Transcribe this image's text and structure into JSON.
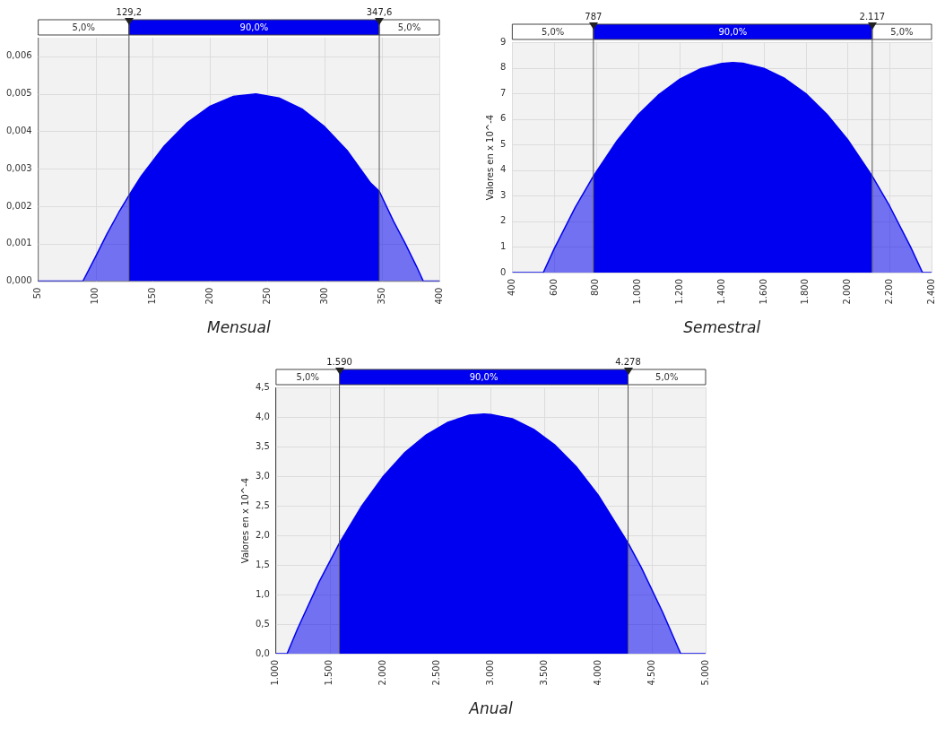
{
  "chart_data": [
    {
      "type": "area",
      "xlabel": "Mensual",
      "color": "#0000f0",
      "x": [
        50,
        89,
        100,
        110,
        120,
        129.2,
        140,
        160,
        180,
        200,
        220,
        240,
        260,
        280,
        300,
        320,
        340,
        347.6,
        360,
        370,
        380,
        386,
        400
      ],
      "values": [
        0,
        0,
        0.00065,
        0.00126,
        0.00182,
        0.00229,
        0.00281,
        0.00361,
        0.00423,
        0.00467,
        0.00493,
        0.005,
        0.00489,
        0.0046,
        0.00412,
        0.00347,
        0.00262,
        0.0024,
        0.0016,
        0.00102,
        0.0004,
        0,
        0
      ],
      "xlim": [
        50,
        400
      ],
      "xticks": [
        50,
        100,
        150,
        200,
        250,
        300,
        350,
        400
      ],
      "ylim": [
        0,
        0.0065
      ],
      "yticks": [
        {
          "value": 0,
          "label": "0,000"
        },
        {
          "value": 0.001,
          "label": "0,001"
        },
        {
          "value": 0.002,
          "label": "0,002"
        },
        {
          "value": 0.003,
          "label": "0,003"
        },
        {
          "value": 0.004,
          "label": "0,004"
        },
        {
          "value": 0.005,
          "label": "0,005"
        },
        {
          "value": 0.006,
          "label": "0,006"
        }
      ],
      "grid": true,
      "ref_lines": [
        {
          "axis": "x",
          "value": 129.2,
          "label": "129,2"
        },
        {
          "axis": "x",
          "value": 347.6,
          "label": "347,6"
        }
      ],
      "annotations": [
        "5,0%",
        "90,0%",
        "5,0%"
      ]
    },
    {
      "type": "area",
      "xlabel": "Semestral",
      "ylabel": "Valores en x 10^-4",
      "color": "#0000f0",
      "x": [
        400,
        548,
        600,
        700,
        787,
        900,
        1000,
        1100,
        1200,
        1300,
        1400,
        1452,
        1500,
        1600,
        1700,
        1800,
        1900,
        2000,
        2117,
        2200,
        2300,
        2357,
        2400
      ],
      "values": [
        0,
        0,
        0.93,
        2.54,
        3.77,
        5.15,
        6.16,
        6.96,
        7.56,
        7.97,
        8.17,
        8.2,
        8.18,
        7.98,
        7.58,
        6.99,
        6.19,
        5.19,
        3.77,
        2.6,
        1.0,
        0,
        0
      ],
      "xlim": [
        400,
        2400
      ],
      "xticks": [
        400,
        600,
        800,
        {
          "value": 1000,
          "label": "1.000"
        },
        {
          "value": 1200,
          "label": "1.200"
        },
        {
          "value": 1400,
          "label": "1.400"
        },
        {
          "value": 1600,
          "label": "1.600"
        },
        {
          "value": 1800,
          "label": "1.800"
        },
        {
          "value": 2000,
          "label": "2.000"
        },
        {
          "value": 2200,
          "label": "2.200"
        },
        {
          "value": 2400,
          "label": "2.400"
        }
      ],
      "ylim": [
        0,
        9
      ],
      "yticks": [
        0,
        1,
        2,
        3,
        4,
        5,
        6,
        7,
        8,
        9
      ],
      "grid": true,
      "ref_lines": [
        {
          "axis": "x",
          "value": 787,
          "label": "787"
        },
        {
          "axis": "x",
          "value": 2117,
          "label": "2.117"
        }
      ],
      "annotations": [
        "5,0%",
        "90,0%",
        "5,0%"
      ]
    },
    {
      "type": "area",
      "xlabel": "Anual",
      "ylabel": "Valores en x 10^-4",
      "color": "#0000f0",
      "x": [
        1000,
        1103,
        1200,
        1400,
        1590,
        1800,
        2000,
        2200,
        2400,
        2600,
        2800,
        2935,
        3000,
        3200,
        3400,
        3600,
        3800,
        4000,
        4278,
        4400,
        4600,
        4768,
        5000
      ],
      "values": [
        0,
        0,
        0.42,
        1.21,
        1.87,
        2.5,
        3.0,
        3.4,
        3.7,
        3.91,
        4.03,
        4.05,
        4.04,
        3.97,
        3.79,
        3.52,
        3.15,
        2.68,
        1.87,
        1.46,
        0.7,
        0,
        0
      ],
      "xlim": [
        1000,
        5000
      ],
      "xticks": [
        {
          "value": 1000,
          "label": "1.000"
        },
        {
          "value": 1500,
          "label": "1.500"
        },
        {
          "value": 2000,
          "label": "2.000"
        },
        {
          "value": 2500,
          "label": "2.500"
        },
        {
          "value": 3000,
          "label": "3.000"
        },
        {
          "value": 3500,
          "label": "3.500"
        },
        {
          "value": 4000,
          "label": "4.000"
        },
        {
          "value": 4500,
          "label": "4.500"
        },
        {
          "value": 5000,
          "label": "5.000"
        }
      ],
      "ylim": [
        0,
        4.5
      ],
      "yticks": [
        {
          "value": 0,
          "label": "0,0"
        },
        {
          "value": 0.5,
          "label": "0,5"
        },
        {
          "value": 1,
          "label": "1,0"
        },
        {
          "value": 1.5,
          "label": "1,5"
        },
        {
          "value": 2,
          "label": "2,0"
        },
        {
          "value": 2.5,
          "label": "2,5"
        },
        {
          "value": 3,
          "label": "3,0"
        },
        {
          "value": 3.5,
          "label": "3,5"
        },
        {
          "value": 4,
          "label": "4,0"
        },
        {
          "value": 4.5,
          "label": "4,5"
        }
      ],
      "grid": true,
      "ref_lines": [
        {
          "axis": "x",
          "value": 1590,
          "label": "1.590"
        },
        {
          "axis": "x",
          "value": 4278,
          "label": "4.278"
        }
      ],
      "annotations": [
        "5,0%",
        "90,0%",
        "5,0%"
      ]
    }
  ]
}
